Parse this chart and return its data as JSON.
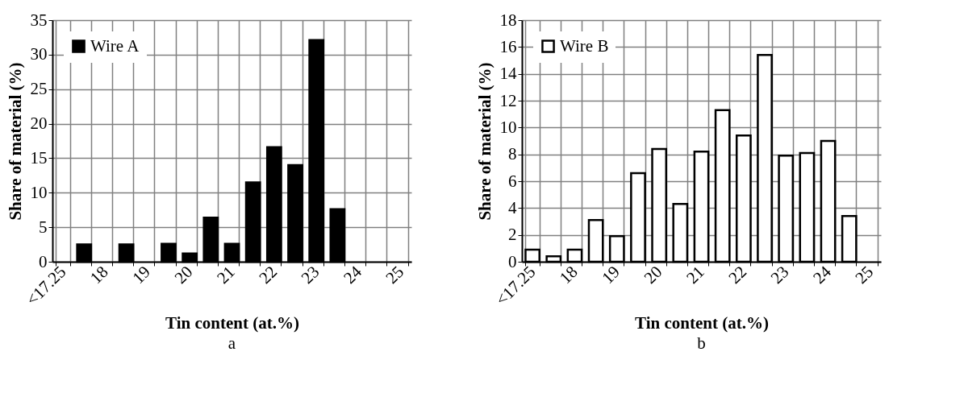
{
  "chart_data": [
    {
      "type": "bar",
      "xlabel": "Tin content (at.%)",
      "ylabel": "Share of material (%)",
      "categories": [
        "<17.25",
        null,
        "18",
        null,
        "19",
        null,
        "20",
        null,
        "21",
        null,
        "22",
        null,
        "23",
        null,
        "24",
        null,
        "25"
      ],
      "series": [
        {
          "name": "Wire A",
          "color": "#000000",
          "values": [
            null,
            2.5,
            null,
            2.5,
            null,
            2.6,
            1.2,
            6.4,
            2.6,
            11.5,
            16.6,
            14.0,
            32.1,
            7.6,
            null,
            null,
            null
          ]
        }
      ],
      "ylim": [
        0,
        35
      ],
      "yticks": [
        0,
        5,
        10,
        15,
        20,
        25,
        30,
        35
      ],
      "grid": true,
      "legend": "top left",
      "annotations": [
        "a"
      ]
    },
    {
      "type": "bar",
      "xlabel": "Tin content (at.%)",
      "ylabel": "Share of material (%)",
      "categories": [
        "<17.25",
        null,
        "18",
        null,
        "19",
        null,
        "20",
        null,
        "21",
        null,
        "22",
        null,
        "23",
        null,
        "24",
        null,
        "25"
      ],
      "series": [
        {
          "name": "Wire B",
          "color": "#ffffff",
          "values": [
            0.9,
            0.4,
            0.9,
            3.1,
            1.9,
            6.6,
            8.4,
            4.3,
            8.2,
            11.3,
            9.4,
            15.4,
            7.9,
            8.1,
            9.0,
            3.4,
            null
          ]
        }
      ],
      "ylim": [
        0,
        18
      ],
      "yticks": [
        0,
        2,
        4,
        6,
        8,
        10,
        12,
        14,
        16,
        18
      ],
      "grid": true,
      "legend": "top left",
      "annotations": [
        "b"
      ]
    }
  ]
}
